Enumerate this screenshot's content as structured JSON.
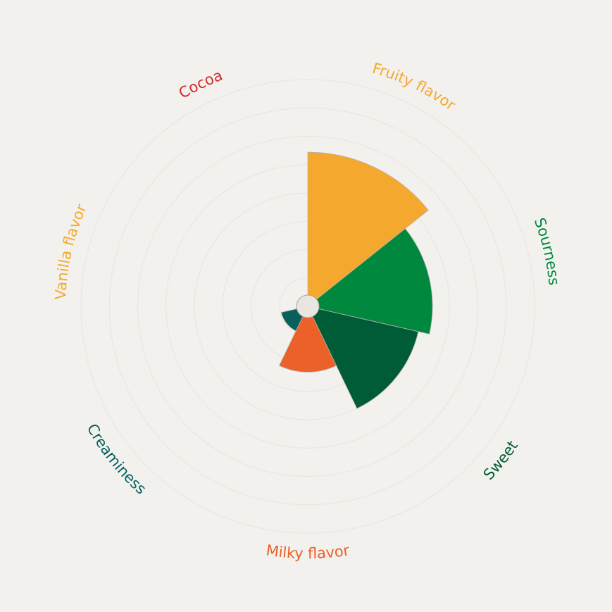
{
  "chart_data": {
    "type": "polar-area",
    "max": 10,
    "grid_rings": 8,
    "categories": [
      {
        "label": "Fruity flavor",
        "value": 6.8,
        "color": "#f5a82e"
      },
      {
        "label": "Sourness",
        "value": 5.5,
        "color": "#00893e"
      },
      {
        "label": "Sweet",
        "value": 5.0,
        "color": "#005c36"
      },
      {
        "label": "Milky flavor",
        "value": 2.9,
        "color": "#eb6129"
      },
      {
        "label": "Creaminess",
        "value": 1.2,
        "color": "#07605e"
      },
      {
        "label": "Vanilla flavor",
        "value": 0.0,
        "color": "#f5a82e"
      },
      {
        "label": "Cocoa",
        "value": 0.4,
        "color": "#d12a2a"
      }
    ]
  }
}
